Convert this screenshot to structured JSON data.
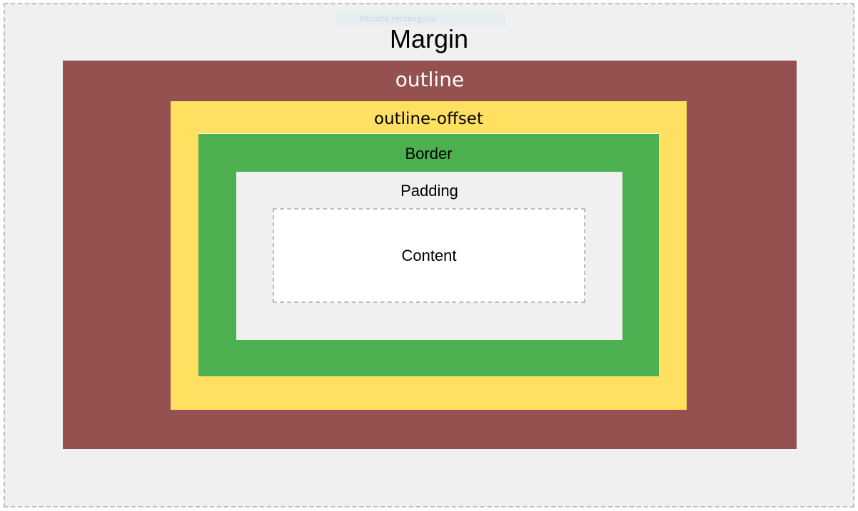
{
  "tooltip": {
    "text": "Recorte rectangular"
  },
  "diagram": {
    "margin_label": "Margin",
    "outline_label": "outline",
    "outline_offset_label": "outline-offset",
    "border_label": "Border",
    "padding_label": "Padding",
    "content_label": "Content"
  },
  "colors": {
    "margin": "#f0f0f0",
    "outline": "#955050",
    "outline_offset": "#ffe060",
    "border": "#4caf50",
    "padding": "#f0f0f0",
    "content": "#ffffff",
    "dashed_border": "#bdbdbd"
  }
}
